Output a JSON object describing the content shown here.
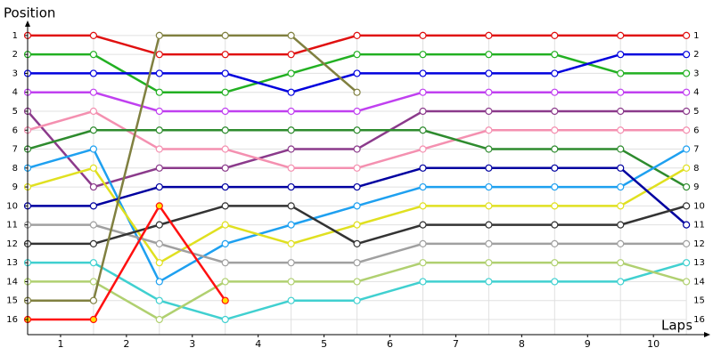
{
  "chart_data": {
    "type": "line",
    "y_label": "Position",
    "x_label": "Laps",
    "x": [
      0,
      1,
      2,
      3,
      4,
      5,
      6,
      7,
      8,
      9,
      10
    ],
    "xlim": [
      0,
      10.35
    ],
    "ylim": [
      16.8,
      0.3
    ],
    "xticks": [
      {
        "value": 0.5,
        "label": "1"
      },
      {
        "value": 1.5,
        "label": "2"
      },
      {
        "value": 2.5,
        "label": "3"
      },
      {
        "value": 3.5,
        "label": "4"
      },
      {
        "value": 4.5,
        "label": "5"
      },
      {
        "value": 5.5,
        "label": "6"
      },
      {
        "value": 6.5,
        "label": "7"
      },
      {
        "value": 7.5,
        "label": "8"
      },
      {
        "value": 8.5,
        "label": "9"
      },
      {
        "value": 9.5,
        "label": "10"
      }
    ],
    "yticks": [
      1,
      2,
      3,
      4,
      5,
      6,
      7,
      8,
      9,
      10,
      11,
      12,
      13,
      14,
      15,
      16
    ],
    "grid": true,
    "series": [
      {
        "color": "#e01010",
        "values": [
          1,
          1,
          2,
          2,
          2,
          1,
          1,
          1,
          1,
          1,
          1
        ]
      },
      {
        "color": "#22b022",
        "values": [
          2,
          2,
          4,
          4,
          3,
          2,
          2,
          2,
          2,
          3,
          3
        ]
      },
      {
        "color": "#0000dd",
        "values": [
          3,
          3,
          3,
          3,
          4,
          3,
          3,
          3,
          3,
          2,
          2
        ]
      },
      {
        "color": "#c040f0",
        "values": [
          4,
          4,
          5,
          5,
          5,
          5,
          4,
          4,
          4,
          4,
          4
        ]
      },
      {
        "color": "#8b3a8b",
        "values": [
          5,
          9,
          8,
          8,
          7,
          7,
          5,
          5,
          5,
          5,
          5
        ]
      },
      {
        "color": "#f490b0",
        "values": [
          6,
          5,
          7,
          7,
          8,
          8,
          7,
          6,
          6,
          6,
          6
        ]
      },
      {
        "color": "#2e8b2e",
        "values": [
          7,
          6,
          6,
          6,
          6,
          6,
          6,
          7,
          7,
          7,
          9
        ]
      },
      {
        "color": "#1ea0f0",
        "values": [
          8,
          7,
          14,
          12,
          11,
          10,
          9,
          9,
          9,
          9,
          7
        ]
      },
      {
        "color": "#e0e020",
        "values": [
          9,
          8,
          13,
          11,
          12,
          11,
          10,
          10,
          10,
          10,
          8
        ]
      },
      {
        "color": "#0000a0",
        "values": [
          10,
          10,
          9,
          9,
          9,
          9,
          8,
          8,
          8,
          8,
          11
        ]
      },
      {
        "color": "#a0a0a0",
        "values": [
          11,
          11,
          12,
          13,
          13,
          13,
          12,
          12,
          12,
          12,
          12
        ]
      },
      {
        "color": "#333333",
        "values": [
          12,
          12,
          11,
          10,
          10,
          12,
          11,
          11,
          11,
          11,
          10
        ]
      },
      {
        "color": "#40d0d0",
        "values": [
          13,
          13,
          15,
          16,
          15,
          15,
          14,
          14,
          14,
          14,
          13
        ]
      },
      {
        "color": "#b0d070",
        "values": [
          14,
          14,
          16,
          14,
          14,
          14,
          13,
          13,
          13,
          13,
          14
        ]
      },
      {
        "color": "#808040",
        "values": [
          15,
          15,
          1,
          1,
          1,
          4,
          null,
          null,
          null,
          null,
          null
        ]
      },
      {
        "color": "#ff1010",
        "marker_color": "#ffe000",
        "values": [
          16,
          16,
          10,
          15,
          null,
          null,
          null,
          null,
          null,
          null,
          null
        ]
      }
    ]
  }
}
